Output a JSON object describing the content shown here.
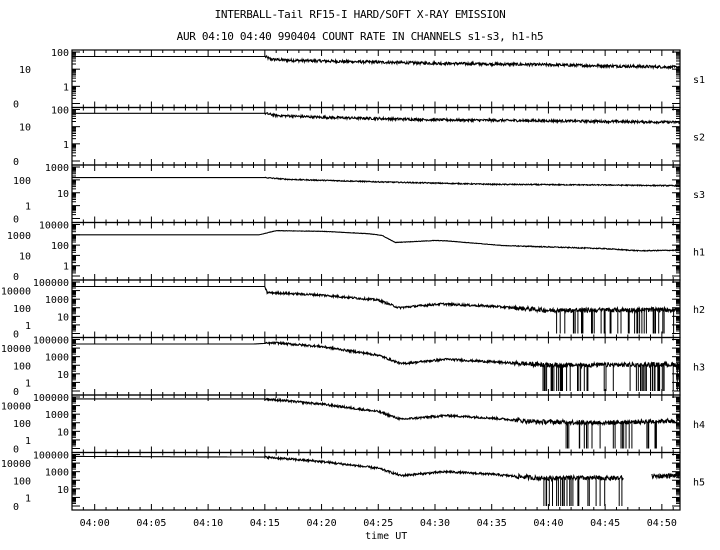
{
  "title": "INTERBALL-Tail RF15-I HARD/SOFT X-RAY EMISSION",
  "subtitle": "AUR 04:10 04:40 990404  COUNT RATE IN CHANNELS s1-s3, h1-h5",
  "chart_data": {
    "type": "line",
    "title": "INTERBALL-Tail RF15-I HARD/SOFT X-RAY EMISSION",
    "subtitle": "AUR 04:10 04:40 990404  COUNT RATE IN CHANNELS s1-s3, h1-h5",
    "xlabel": "time UT",
    "x_unit": "minutes after 04:00 UT",
    "xlim": [
      -2.0,
      51.6
    ],
    "x_ticks": [
      0,
      5,
      10,
      15,
      20,
      25,
      30,
      35,
      40,
      45,
      50
    ],
    "x_tick_labels": [
      "04:00",
      "04:05",
      "04:10",
      "04:15",
      "04:20",
      "04:25",
      "04:30",
      "04:35",
      "04:40",
      "04:45",
      "04:50"
    ],
    "y_scale": "log",
    "panels": [
      {
        "name": "s1",
        "y_tick_labels": [
          "100",
          "10",
          "1",
          "0"
        ],
        "ylim_log10": [
          -1,
          2
        ],
        "noise": 0.08,
        "points": [
          [
            -2,
            55
          ],
          [
            15,
            55
          ],
          [
            15.5,
            38
          ],
          [
            17,
            33
          ],
          [
            22,
            28
          ],
          [
            30,
            22
          ],
          [
            40,
            18
          ],
          [
            51.6,
            13
          ]
        ],
        "dropouts": []
      },
      {
        "name": "s2",
        "y_tick_labels": [
          "100",
          "10",
          "1",
          "0"
        ],
        "ylim_log10": [
          -1,
          2
        ],
        "noise": 0.07,
        "points": [
          [
            -2,
            60
          ],
          [
            15,
            60
          ],
          [
            16,
            45
          ],
          [
            20,
            35
          ],
          [
            30,
            25
          ],
          [
            40,
            22
          ],
          [
            51.6,
            18
          ]
        ],
        "dropouts": []
      },
      {
        "name": "s3",
        "y_tick_labels": [
          "1000",
          "100",
          "10",
          "1",
          "0"
        ],
        "ylim_log10": [
          -1,
          3
        ],
        "noise": 0.04,
        "points": [
          [
            -2,
            150
          ],
          [
            15,
            150
          ],
          [
            17,
            110
          ],
          [
            25,
            70
          ],
          [
            35,
            45
          ],
          [
            45,
            40
          ],
          [
            51.6,
            35
          ]
        ],
        "dropouts": []
      },
      {
        "name": "h1",
        "y_tick_labels": [
          "10000",
          "1000",
          "100",
          "10",
          "1",
          "0"
        ],
        "ylim_log10": [
          -1,
          4
        ],
        "noise": 0.02,
        "points": [
          [
            -2,
            1000
          ],
          [
            14.5,
            1000
          ],
          [
            16,
            2500
          ],
          [
            20,
            2200
          ],
          [
            24,
            1300
          ],
          [
            25.3,
            900
          ],
          [
            26.5,
            180
          ],
          [
            30,
            280
          ],
          [
            31,
            260
          ],
          [
            36,
            90
          ],
          [
            45,
            45
          ],
          [
            48,
            28
          ],
          [
            51.6,
            32
          ]
        ],
        "dropouts": []
      },
      {
        "name": "h2",
        "y_tick_labels": [
          "100000",
          "10000",
          "1000",
          "100",
          "10",
          "1",
          "0"
        ],
        "ylim_log10": [
          -1,
          5
        ],
        "noise": 0.12,
        "points": [
          [
            -2,
            30000
          ],
          [
            15,
            30000
          ],
          [
            15.2,
            6000
          ],
          [
            20,
            3000
          ],
          [
            25,
            800
          ],
          [
            26.8,
            100
          ],
          [
            30.5,
            280
          ],
          [
            35,
            150
          ],
          [
            40,
            50
          ],
          [
            51.6,
            60
          ]
        ],
        "dropouts": [
          [
            40.5,
            51.6
          ]
        ]
      },
      {
        "name": "h3",
        "y_tick_labels": [
          "100000",
          "10000",
          "1000",
          "100",
          "10",
          "1",
          "0"
        ],
        "ylim_log10": [
          -1,
          5
        ],
        "noise": 0.12,
        "points": [
          [
            -2,
            30000
          ],
          [
            14,
            30000
          ],
          [
            16,
            40000
          ],
          [
            20,
            15000
          ],
          [
            25,
            1500
          ],
          [
            27,
            150
          ],
          [
            31,
            500
          ],
          [
            35,
            250
          ],
          [
            40,
            100
          ],
          [
            51.6,
            120
          ]
        ],
        "dropouts": [
          [
            39,
            51.6
          ]
        ]
      },
      {
        "name": "h4",
        "y_tick_labels": [
          "100000",
          "10000",
          "1000",
          "100",
          "10",
          "1",
          "0"
        ],
        "ylim_log10": [
          -1,
          5
        ],
        "noise": 0.12,
        "points": [
          [
            -2,
            60000
          ],
          [
            15,
            60000
          ],
          [
            20,
            15000
          ],
          [
            25,
            2000
          ],
          [
            27,
            250
          ],
          [
            31,
            700
          ],
          [
            35,
            350
          ],
          [
            39,
            130
          ],
          [
            45,
            100
          ],
          [
            51.6,
            180
          ]
        ],
        "dropouts": [
          [
            41.5,
            50
          ]
        ]
      },
      {
        "name": "h5",
        "y_tick_labels": [
          "100000",
          "10000",
          "1000",
          "100",
          "10",
          "1",
          "0"
        ],
        "ylim_log10": [
          -1,
          5
        ],
        "noise": 0.12,
        "points": [
          [
            -2,
            60000
          ],
          [
            15,
            50000
          ],
          [
            20,
            15000
          ],
          [
            25,
            2500
          ],
          [
            27,
            350
          ],
          [
            31,
            1000
          ],
          [
            35,
            500
          ],
          [
            39,
            180
          ],
          [
            46.5,
            180
          ],
          [
            49.2,
            300
          ],
          [
            51.6,
            350
          ]
        ],
        "dropouts": [
          [
            39.5,
            46.5
          ]
        ],
        "gaps": [
          [
            46.6,
            49.1
          ]
        ]
      }
    ]
  }
}
